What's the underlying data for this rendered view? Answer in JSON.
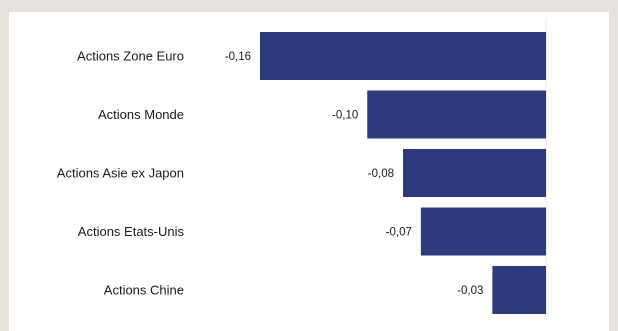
{
  "chart_data": {
    "type": "bar",
    "orientation": "horizontal",
    "categories": [
      "Actions Zone Euro",
      "Actions Monde",
      "Actions Asie ex Japon",
      "Actions Etats-Unis",
      "Actions Chine"
    ],
    "values": [
      -0.16,
      -0.1,
      -0.08,
      -0.07,
      -0.03
    ],
    "value_labels": [
      "-0,16",
      "-0,10",
      "-0,08",
      "-0,07",
      "-0,03"
    ],
    "xlim": [
      -0.16,
      0
    ],
    "bar_color": "#2e3a7c",
    "grid": false,
    "legend": "none",
    "title": "",
    "xlabel": "",
    "ylabel": ""
  }
}
